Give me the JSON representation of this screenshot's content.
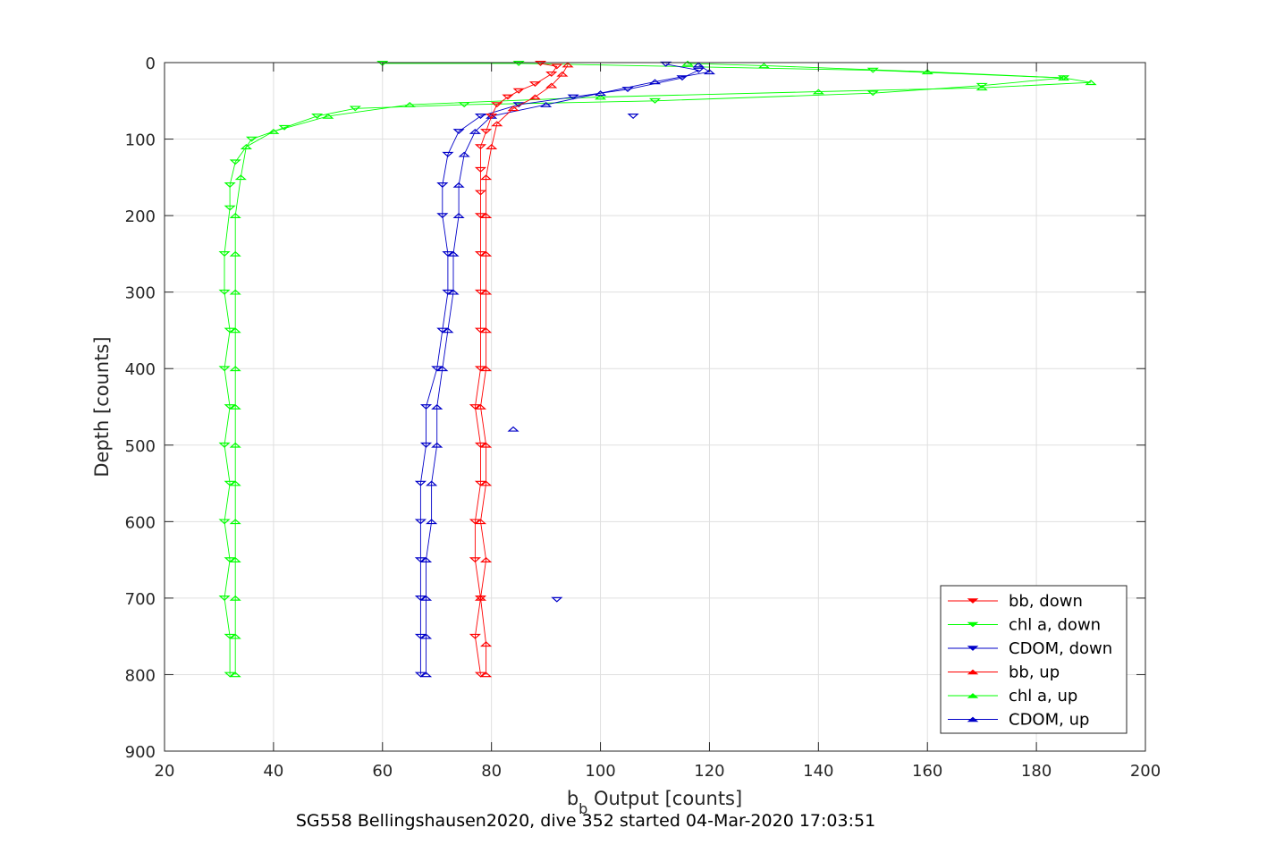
{
  "chart_data": {
    "type": "scatter",
    "xlabel_main": "b",
    "xlabel_sub": "b",
    "xlabel_rest": " Output [counts]",
    "ylabel": "Depth [counts]",
    "caption": "SG558 Bellingshausen2020, dive 352 started 04-Mar-2020 17:03:51",
    "xlim": [
      20,
      200
    ],
    "ylim": [
      0,
      900
    ],
    "y_reversed": true,
    "grid": true,
    "legend_position": "bottom-right",
    "x_ticks": [
      "20",
      "40",
      "60",
      "80",
      "100",
      "120",
      "140",
      "160",
      "180",
      "200"
    ],
    "y_ticks": [
      "0",
      "100",
      "200",
      "300",
      "400",
      "500",
      "600",
      "700",
      "800",
      "900"
    ],
    "series": [
      {
        "name": "bb, down",
        "color": "#ff0000",
        "marker": "triangle-down",
        "points": [
          [
            89,
            1
          ],
          [
            92,
            5
          ],
          [
            91,
            15
          ],
          [
            88,
            28
          ],
          [
            85,
            37
          ],
          [
            83,
            45
          ],
          [
            81,
            55
          ],
          [
            80,
            70
          ],
          [
            79,
            90
          ],
          [
            78,
            110
          ],
          [
            78,
            140
          ],
          [
            78,
            170
          ],
          [
            78,
            200
          ],
          [
            78,
            250
          ],
          [
            78,
            300
          ],
          [
            78,
            350
          ],
          [
            78,
            400
          ],
          [
            77,
            450
          ],
          [
            78,
            500
          ],
          [
            78,
            550
          ],
          [
            77,
            600
          ],
          [
            77,
            650
          ],
          [
            78,
            700
          ],
          [
            77,
            750
          ],
          [
            78,
            800
          ]
        ]
      },
      {
        "name": "chl a, down",
        "color": "#00ff00",
        "marker": "triangle-down",
        "points": [
          [
            60,
            1
          ],
          [
            85,
            1
          ],
          [
            150,
            10
          ],
          [
            185,
            20
          ],
          [
            170,
            30
          ],
          [
            150,
            40
          ],
          [
            110,
            50
          ],
          [
            75,
            55
          ],
          [
            55,
            60
          ],
          [
            48,
            70
          ],
          [
            42,
            85
          ],
          [
            36,
            100
          ],
          [
            33,
            130
          ],
          [
            32,
            160
          ],
          [
            32,
            190
          ],
          [
            31,
            250
          ],
          [
            31,
            300
          ],
          [
            32,
            350
          ],
          [
            31,
            400
          ],
          [
            32,
            450
          ],
          [
            31,
            500
          ],
          [
            32,
            550
          ],
          [
            31,
            600
          ],
          [
            32,
            650
          ],
          [
            31,
            700
          ],
          [
            32,
            750
          ],
          [
            32,
            800
          ]
        ]
      },
      {
        "name": "CDOM, down",
        "color": "#0000c8",
        "marker": "triangle-down",
        "points": [
          [
            112,
            2
          ],
          [
            118,
            10
          ],
          [
            115,
            20
          ],
          [
            105,
            35
          ],
          [
            95,
            45
          ],
          [
            85,
            55
          ],
          [
            78,
            70
          ],
          [
            74,
            90
          ],
          [
            72,
            120
          ],
          [
            71,
            160
          ],
          [
            71,
            200
          ],
          [
            72,
            250
          ],
          [
            72,
            300
          ],
          [
            71,
            350
          ],
          [
            70,
            400
          ],
          [
            68,
            450
          ],
          [
            68,
            500
          ],
          [
            67,
            550
          ],
          [
            67,
            600
          ],
          [
            67,
            650
          ],
          [
            67,
            700
          ],
          [
            67,
            750
          ],
          [
            67,
            800
          ]
        ]
      },
      {
        "name": "bb, up",
        "color": "#ff0000",
        "marker": "triangle-up",
        "points": [
          [
            79,
            800
          ],
          [
            79,
            760
          ],
          [
            78,
            700
          ],
          [
            79,
            650
          ],
          [
            78,
            600
          ],
          [
            79,
            550
          ],
          [
            79,
            500
          ],
          [
            78,
            450
          ],
          [
            79,
            400
          ],
          [
            79,
            350
          ],
          [
            79,
            300
          ],
          [
            79,
            250
          ],
          [
            79,
            200
          ],
          [
            79,
            150
          ],
          [
            80,
            110
          ],
          [
            81,
            80
          ],
          [
            84,
            60
          ],
          [
            88,
            45
          ],
          [
            91,
            30
          ],
          [
            93,
            15
          ],
          [
            94,
            3
          ]
        ]
      },
      {
        "name": "chl a, up",
        "color": "#00ff00",
        "marker": "triangle-up",
        "points": [
          [
            33,
            800
          ],
          [
            33,
            750
          ],
          [
            33,
            700
          ],
          [
            33,
            650
          ],
          [
            33,
            600
          ],
          [
            33,
            550
          ],
          [
            33,
            500
          ],
          [
            33,
            450
          ],
          [
            33,
            400
          ],
          [
            33,
            350
          ],
          [
            33,
            300
          ],
          [
            33,
            250
          ],
          [
            33,
            200
          ],
          [
            34,
            150
          ],
          [
            35,
            110
          ],
          [
            40,
            90
          ],
          [
            50,
            70
          ],
          [
            65,
            55
          ],
          [
            100,
            45
          ],
          [
            140,
            38
          ],
          [
            170,
            33
          ],
          [
            190,
            26
          ],
          [
            185,
            20
          ],
          [
            160,
            12
          ],
          [
            130,
            4
          ],
          [
            116,
            1
          ]
        ]
      },
      {
        "name": "CDOM, up",
        "color": "#0000c8",
        "marker": "triangle-up",
        "points": [
          [
            68,
            800
          ],
          [
            68,
            750
          ],
          [
            68,
            700
          ],
          [
            68,
            650
          ],
          [
            69,
            600
          ],
          [
            69,
            550
          ],
          [
            70,
            500
          ],
          [
            70,
            450
          ],
          [
            71,
            400
          ],
          [
            72,
            350
          ],
          [
            73,
            300
          ],
          [
            73,
            250
          ],
          [
            74,
            200
          ],
          [
            74,
            160
          ],
          [
            75,
            120
          ],
          [
            77,
            90
          ],
          [
            80,
            70
          ],
          [
            90,
            55
          ],
          [
            100,
            40
          ],
          [
            110,
            25
          ],
          [
            120,
            12
          ],
          [
            118,
            3
          ]
        ]
      }
    ],
    "outliers": [
      {
        "series": "CDOM, up",
        "x": 84,
        "y": 479
      },
      {
        "series": "CDOM, down",
        "x": 92,
        "y": 702
      },
      {
        "series": "CDOM, down",
        "x": 106,
        "y": 70
      }
    ]
  }
}
